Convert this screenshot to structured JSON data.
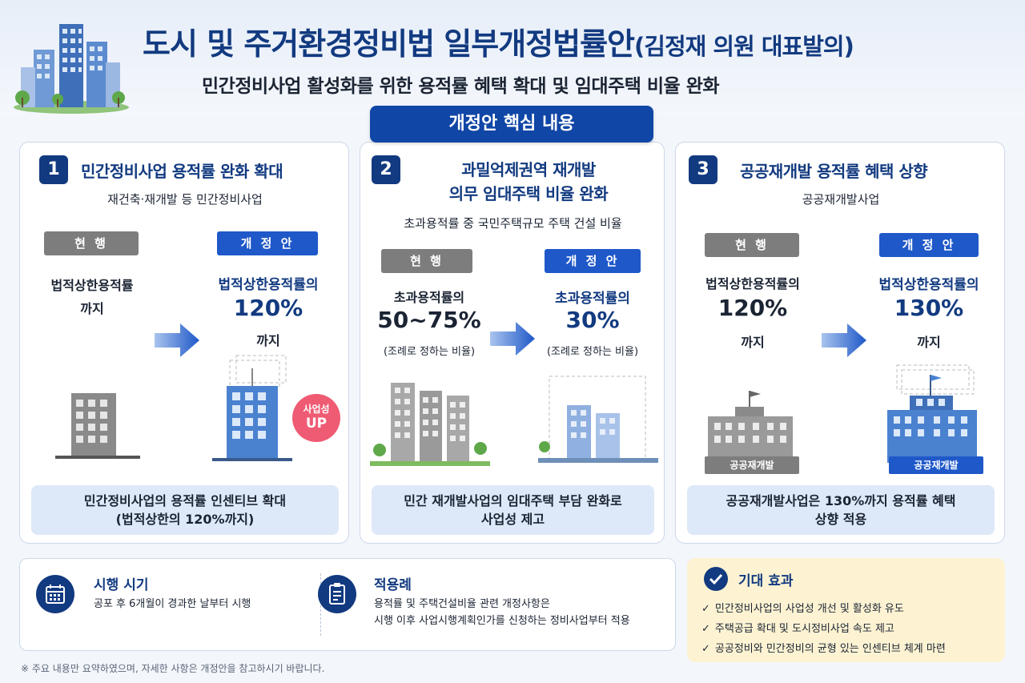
{
  "header": {
    "title": "도시 및 주거환경정비법 일부개정법률안",
    "title_suffix": "(김정재 의원 대표발의)",
    "subtitle": "민간정비사업 활성화를 위한 용적률 혜택 확대 및 임대주택 비율 완화"
  },
  "core_label": "개정안 핵심 내용",
  "panels": [
    {
      "number": "1",
      "title": "민간정비사업 용적률 완화 확대",
      "desc": "재건축·재개발 등 민간정비사업",
      "current_tag": "현 행",
      "proposed_tag": "개 정 안",
      "current_line1": "법적상한용적률",
      "current_line2": "까지",
      "proposed_line1": "법적상한용적률의",
      "proposed_value": "120%",
      "proposed_line3": "까지",
      "badge_line1": "사업성",
      "badge_line2": "UP",
      "summary_line1": "민간정비사업의 용적률 인센티브 확대",
      "summary_line2": "(법적상한의 120%까지)"
    },
    {
      "number": "2",
      "title_line1": "과밀억제권역 재개발",
      "title_line2": "의무 임대주택 비율 완화",
      "desc": "초과용적률 중 국민주택규모 주택 건설 비율",
      "current_tag": "현 행",
      "proposed_tag": "개 정 안",
      "current_line1": "초과용적률의",
      "current_value": "50~75%",
      "current_note": "(조례로 정하는 비율)",
      "proposed_line1": "초과용적률의",
      "proposed_value": "30%",
      "proposed_note": "(조례로 정하는 비율)",
      "summary_line1": "민간 재개발사업의 임대주택 부담 완화로",
      "summary_line2": "사업성 제고"
    },
    {
      "number": "3",
      "title": "공공재개발 용적률 혜택 상향",
      "desc": "공공재개발사업",
      "current_tag": "현 행",
      "proposed_tag": "개 정 안",
      "current_line1": "법적상한용적률의",
      "current_value": "120%",
      "current_line3": "까지",
      "proposed_line1": "법적상한용적률의",
      "proposed_value": "130%",
      "proposed_line3": "까지",
      "building_label_current": "공공재개발",
      "building_label_proposed": "공공재개발",
      "summary_line1": "공공재개발사업은 130%까지 용적률 혜택",
      "summary_line2": "상향 적용"
    }
  ],
  "bottom": {
    "schedule_title": "시행 시기",
    "schedule_text": "공포 후 6개월이 경과한 날부터 시행",
    "example_title": "적용례",
    "example_line1": "용적률 및 주택건설비율 관련 개정사항은",
    "example_line2": "시행 이후 사업시행계획인가를 신청하는 정비사업부터 적용"
  },
  "effects": {
    "title": "기대 효과",
    "items": [
      "민간정비사업의 사업성 개선 및 활성화 유도",
      "주택공급 확대 및 도시정비사업 속도 제고",
      "공공정비와 민간정비의 균형 있는 인센티브 체계 마련"
    ]
  },
  "footnote": "※ 주요 내용만 요약하였으며, 자세한 사항은 개정안을 참고하시기 바랍니다.",
  "colors": {
    "navy": "#123a80",
    "blue": "#1f58c8",
    "gray_tag": "#7d7d7d",
    "summary_bg": "#dde8f8",
    "effect_bg": "#fdf3d3",
    "badge": "#ef5b73"
  }
}
